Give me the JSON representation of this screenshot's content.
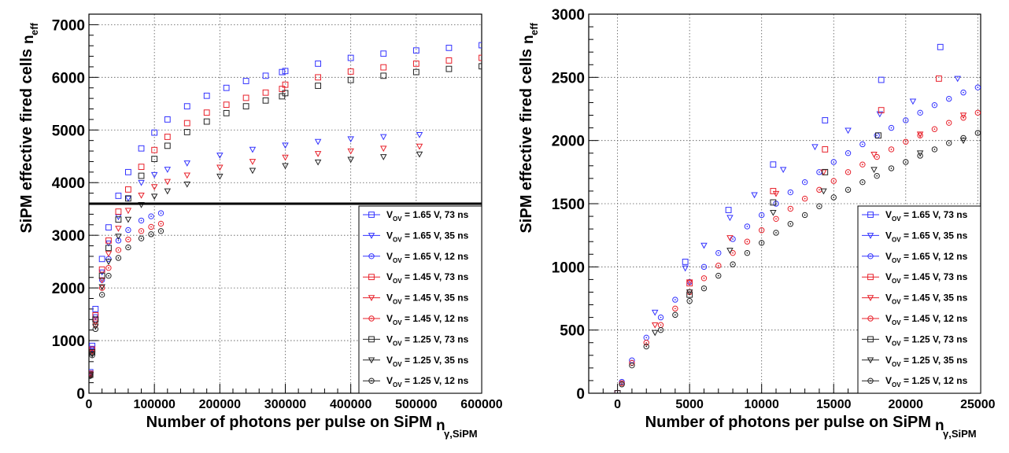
{
  "chart_data": [
    {
      "type": "scatter",
      "title": "",
      "xlabel": "Number of photons per pulse on SiPM",
      "xlabel_sub": "γ,SiPM",
      "xlabel_n": "n",
      "ylabel": "SiPM effective fired cells",
      "ylabel_n": "n",
      "ylabel_sub": "eff",
      "xlim": [
        0,
        600000
      ],
      "ylim": [
        0,
        7200
      ],
      "xticks": [
        0,
        100000,
        200000,
        300000,
        400000,
        500000,
        600000
      ],
      "xtick_labels": [
        "0",
        "100000",
        "200000",
        "300000",
        "400000",
        "500000",
        "600000"
      ],
      "yticks": [
        0,
        1000,
        2000,
        3000,
        4000,
        5000,
        6000,
        7000
      ],
      "ytick_labels": [
        "0",
        "1000",
        "2000",
        "3000",
        "4000",
        "5000",
        "6000",
        "7000"
      ],
      "grid": true,
      "legend_position": "bottom-right",
      "hline": {
        "y": 3600,
        "color": "#000000"
      },
      "series": [
        {
          "name": "V_OV = 1.65 V,  73 ns",
          "label": "= 1.65 V,  73 ns",
          "color": "#3333ff",
          "marker": "square",
          "x": [
            2000,
            5000,
            10000,
            20000,
            30000,
            45000,
            60000,
            80000,
            100000,
            120000,
            150000,
            180000,
            210000,
            240000,
            270000,
            295000,
            300000,
            350000,
            400000,
            450000,
            500000,
            550000,
            600000
          ],
          "y": [
            400,
            900,
            1600,
            2550,
            3150,
            3750,
            4200,
            4650,
            4950,
            5200,
            5450,
            5650,
            5800,
            5930,
            6030,
            6100,
            6120,
            6260,
            6370,
            6450,
            6510,
            6560,
            6610
          ]
        },
        {
          "name": "V_OV = 1.65 V,  35 ns",
          "label": "= 1.65 V,  35 ns",
          "color": "#3333ff",
          "marker": "triangle-down",
          "x": [
            2000,
            5000,
            10000,
            20000,
            30000,
            45000,
            60000,
            80000,
            100000,
            120000,
            150000,
            200000,
            250000,
            300000,
            350000,
            400000,
            450000,
            505000
          ],
          "y": [
            380,
            850,
            1450,
            2300,
            2850,
            3350,
            3700,
            4000,
            4150,
            4250,
            4370,
            4520,
            4630,
            4710,
            4780,
            4830,
            4870,
            4910
          ]
        },
        {
          "name": "V_OV = 1.65 V,  12 ns",
          "label": "= 1.65 V,  12 ns",
          "color": "#3333ff",
          "marker": "circle",
          "x": [
            2000,
            5000,
            10000,
            20000,
            30000,
            45000,
            60000,
            80000,
            95000,
            110000
          ],
          "y": [
            380,
            830,
            1400,
            2150,
            2550,
            2900,
            3100,
            3280,
            3360,
            3420
          ]
        },
        {
          "name": "V_OV = 1.45 V,  73 ns",
          "label": "= 1.45 V,  73 ns",
          "color": "#e8202a",
          "marker": "square",
          "x": [
            2000,
            5000,
            10000,
            20000,
            30000,
            45000,
            60000,
            80000,
            100000,
            120000,
            150000,
            180000,
            210000,
            240000,
            270000,
            295000,
            300000,
            350000,
            400000,
            450000,
            500000,
            550000,
            600000
          ],
          "y": [
            370,
            830,
            1480,
            2350,
            2900,
            3450,
            3870,
            4300,
            4620,
            4870,
            5130,
            5330,
            5480,
            5610,
            5710,
            5780,
            5860,
            6000,
            6110,
            6190,
            6260,
            6320,
            6370
          ]
        },
        {
          "name": "V_OV = 1.45 V,  35 ns",
          "label": "= 1.45 V,  35 ns",
          "color": "#e8202a",
          "marker": "triangle-down",
          "x": [
            2000,
            5000,
            10000,
            20000,
            30000,
            45000,
            60000,
            80000,
            100000,
            120000,
            150000,
            200000,
            250000,
            300000,
            350000,
            400000,
            450000,
            505000
          ],
          "y": [
            350,
            790,
            1350,
            2150,
            2650,
            3130,
            3470,
            3760,
            3920,
            4020,
            4140,
            4290,
            4400,
            4480,
            4550,
            4600,
            4650,
            4690
          ]
        },
        {
          "name": "V_OV = 1.45 V,  12 ns",
          "label": "= 1.45 V,  12 ns",
          "color": "#e8202a",
          "marker": "circle",
          "x": [
            2000,
            5000,
            10000,
            20000,
            30000,
            45000,
            60000,
            80000,
            95000,
            110000
          ],
          "y": [
            350,
            770,
            1300,
            2000,
            2380,
            2720,
            2920,
            3080,
            3160,
            3220
          ]
        },
        {
          "name": "V_OV = 1.25 V,  73 ns",
          "label": "= 1.25 V,  73 ns",
          "color": "#222222",
          "marker": "square",
          "x": [
            2000,
            5000,
            10000,
            20000,
            30000,
            45000,
            60000,
            80000,
            100000,
            120000,
            150000,
            180000,
            210000,
            240000,
            270000,
            295000,
            300000,
            350000,
            400000,
            450000,
            500000,
            550000,
            600000
          ],
          "y": [
            350,
            780,
            1400,
            2230,
            2760,
            3300,
            3700,
            4130,
            4450,
            4700,
            4960,
            5160,
            5320,
            5450,
            5560,
            5640,
            5700,
            5840,
            5950,
            6030,
            6100,
            6160,
            6210
          ]
        },
        {
          "name": "V_OV = 1.25 V,  35 ns",
          "label": "= 1.25 V,  35 ns",
          "color": "#222222",
          "marker": "triangle-down",
          "x": [
            2000,
            5000,
            10000,
            20000,
            30000,
            45000,
            60000,
            80000,
            100000,
            120000,
            150000,
            200000,
            250000,
            300000,
            350000,
            400000,
            450000,
            505000
          ],
          "y": [
            330,
            740,
            1270,
            2020,
            2500,
            2980,
            3300,
            3580,
            3740,
            3840,
            3970,
            4120,
            4230,
            4320,
            4390,
            4440,
            4490,
            4540
          ]
        },
        {
          "name": "V_OV = 1.25 V,  12 ns",
          "label": "= 1.25 V,  12 ns",
          "color": "#222222",
          "marker": "circle",
          "x": [
            2000,
            5000,
            10000,
            20000,
            30000,
            45000,
            60000,
            80000,
            95000,
            110000
          ],
          "y": [
            330,
            720,
            1220,
            1870,
            2230,
            2570,
            2770,
            2940,
            3020,
            3080
          ]
        }
      ]
    },
    {
      "type": "scatter",
      "title": "",
      "xlabel": "Number of photons per pulse on SiPM",
      "xlabel_sub": "γ,SiPM",
      "xlabel_n": "n",
      "ylabel": "SiPM effective fired cells",
      "ylabel_n": "n",
      "ylabel_sub": "eff",
      "xlim": [
        -2000,
        25200
      ],
      "ylim": [
        0,
        3000
      ],
      "xticks": [
        0,
        5000,
        10000,
        15000,
        20000,
        25000
      ],
      "xtick_labels": [
        "0",
        "5000",
        "10000",
        "15000",
        "20000",
        "25000"
      ],
      "yticks": [
        0,
        500,
        1000,
        1500,
        2000,
        2500,
        3000
      ],
      "ytick_labels": [
        "0",
        "500",
        "1000",
        "1500",
        "2000",
        "2500",
        "3000"
      ],
      "grid": true,
      "legend_position": "bottom-right",
      "series": [
        {
          "name": "V_OV = 1.65 V,  73 ns",
          "label": "= 1.65 V,  73 ns",
          "color": "#3333ff",
          "marker": "square",
          "x": [
            0,
            4700,
            7700,
            10800,
            14400,
            18300,
            22400
          ],
          "y": [
            0,
            1040,
            1450,
            1810,
            2160,
            2480,
            2740
          ]
        },
        {
          "name": "V_OV = 1.65 V,  35 ns",
          "label": "= 1.65 V,  35 ns",
          "color": "#3333ff",
          "marker": "triangle-down",
          "x": [
            2600,
            4700,
            6000,
            7800,
            9500,
            11500,
            13700,
            16000,
            18200,
            20500,
            23600
          ],
          "y": [
            640,
            990,
            1170,
            1390,
            1570,
            1770,
            1950,
            2080,
            2210,
            2310,
            2490
          ]
        },
        {
          "name": "V_OV = 1.65 V,  12 ns",
          "label": "= 1.65 V,  12 ns",
          "color": "#3333ff",
          "marker": "circle",
          "x": [
            300,
            1000,
            2000,
            3000,
            4000,
            5000,
            6000,
            7000,
            8000,
            9000,
            10000,
            11000,
            12000,
            13000,
            14000,
            15000,
            16000,
            17000,
            18000,
            19000,
            20000,
            21000,
            22000,
            23000,
            24000,
            25000
          ],
          "y": [
            90,
            260,
            440,
            600,
            740,
            880,
            1000,
            1110,
            1220,
            1320,
            1410,
            1500,
            1590,
            1670,
            1750,
            1830,
            1900,
            1970,
            2040,
            2100,
            2160,
            2220,
            2280,
            2330,
            2380,
            2420
          ]
        },
        {
          "name": "V_OV = 1.45 V,  73 ns",
          "label": "= 1.45 V,  73 ns",
          "color": "#e8202a",
          "marker": "square",
          "x": [
            0,
            5000,
            10800,
            14400,
            18300,
            22300
          ],
          "y": [
            0,
            870,
            1600,
            1930,
            2240,
            2490
          ]
        },
        {
          "name": "V_OV = 1.45 V,  35 ns",
          "label": "= 1.45 V,  35 ns",
          "color": "#e8202a",
          "marker": "triangle-down",
          "x": [
            2600,
            5000,
            7800,
            11000,
            14300,
            17800,
            21000,
            24000
          ],
          "y": [
            540,
            880,
            1230,
            1580,
            1750,
            1890,
            2050,
            2200
          ]
        },
        {
          "name": "V_OV = 1.45 V,  12 ns",
          "label": "= 1.45 V,  12 ns",
          "color": "#e8202a",
          "marker": "circle",
          "x": [
            300,
            1000,
            2000,
            3000,
            4000,
            5000,
            6000,
            7000,
            8000,
            9000,
            10000,
            11000,
            12000,
            13000,
            14000,
            15000,
            16000,
            17000,
            18000,
            19000,
            20000,
            21000,
            22000,
            23000,
            24000,
            25000
          ],
          "y": [
            80,
            240,
            400,
            540,
            670,
            800,
            910,
            1010,
            1110,
            1200,
            1290,
            1380,
            1460,
            1540,
            1610,
            1680,
            1750,
            1810,
            1870,
            1930,
            1990,
            2040,
            2090,
            2140,
            2180,
            2220
          ]
        },
        {
          "name": "V_OV = 1.25 V,  73 ns",
          "label": "= 1.25 V,  73 ns",
          "color": "#222222",
          "marker": "square",
          "x": [
            0,
            5000,
            10800,
            14400,
            18100
          ],
          "y": [
            0,
            780,
            1510,
            1750,
            2040
          ]
        },
        {
          "name": "V_OV = 1.25 V,  35 ns",
          "label": "= 1.25 V,  35 ns",
          "color": "#222222",
          "marker": "triangle-down",
          "x": [
            2600,
            5000,
            7800,
            10800,
            14300,
            17800,
            21000,
            24000
          ],
          "y": [
            480,
            800,
            1130,
            1430,
            1600,
            1770,
            1900,
            2000
          ]
        },
        {
          "name": "V_OV = 1.25 V,  12 ns",
          "label": "= 1.25 V,  12 ns",
          "color": "#222222",
          "marker": "circle",
          "x": [
            300,
            1000,
            2000,
            3000,
            4000,
            5000,
            6000,
            7000,
            8000,
            9000,
            10000,
            11000,
            12000,
            13000,
            14000,
            15000,
            16000,
            17000,
            18000,
            19000,
            20000,
            21000,
            22000,
            23000,
            24000,
            25000
          ],
          "y": [
            70,
            220,
            370,
            500,
            620,
            730,
            830,
            930,
            1020,
            1110,
            1190,
            1270,
            1340,
            1410,
            1480,
            1550,
            1610,
            1670,
            1720,
            1780,
            1830,
            1880,
            1930,
            1980,
            2020,
            2060
          ]
        }
      ]
    }
  ],
  "legend_prefix": "V",
  "legend_sub": "OV"
}
